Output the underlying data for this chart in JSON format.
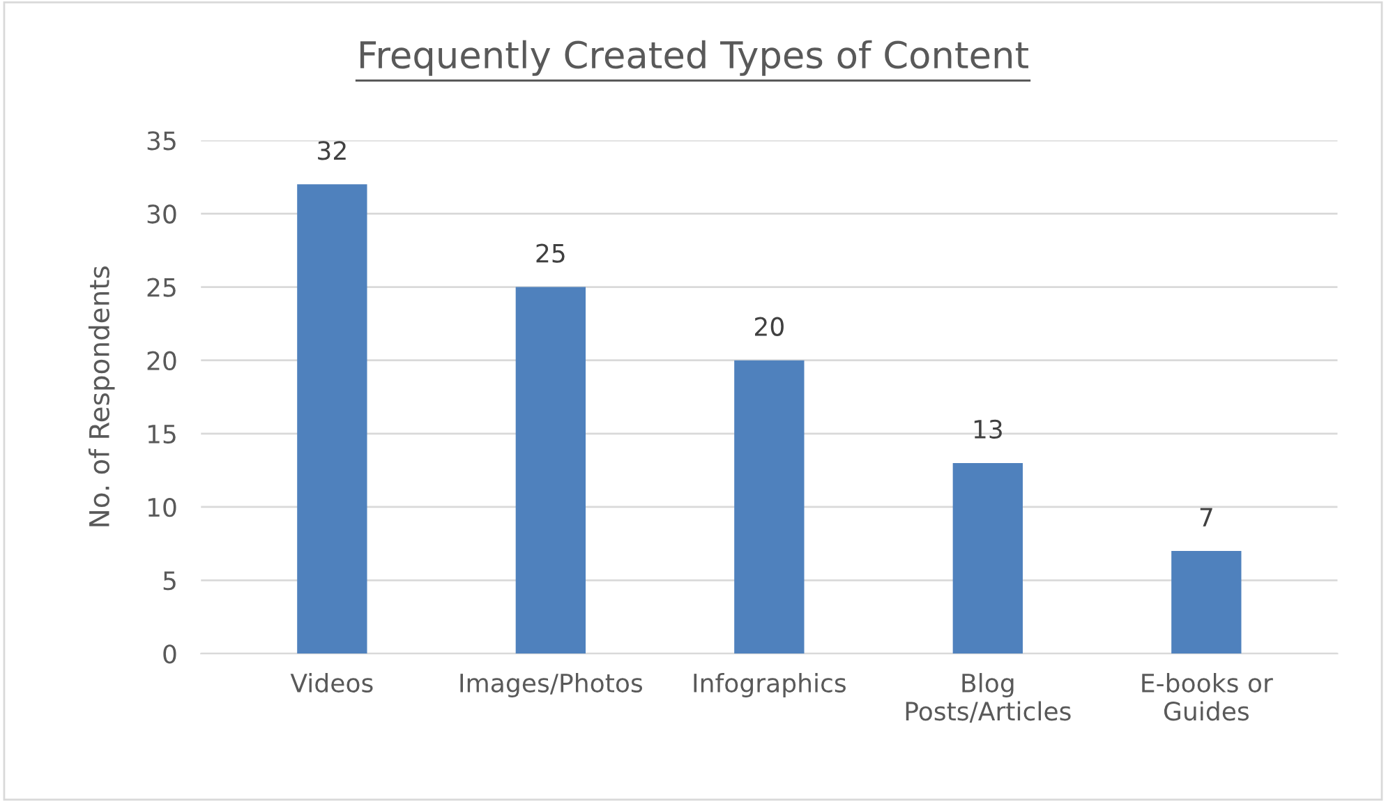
{
  "chart_data": {
    "type": "bar",
    "title": "Frequently Created Types of Content",
    "ylabel": "No. of Respondents",
    "categories": [
      "Videos",
      "Images/Photos",
      "Infographics",
      "Blog\nPosts/Articles",
      "E-books or\nGuides"
    ],
    "values": [
      32,
      25,
      20,
      13,
      7
    ],
    "color": "#4f81bd",
    "ylim": [
      0,
      35
    ],
    "yticks": [
      0,
      5,
      10,
      15,
      20,
      25,
      30,
      35
    ],
    "grid": "y",
    "data_labels": true,
    "legend": false
  }
}
